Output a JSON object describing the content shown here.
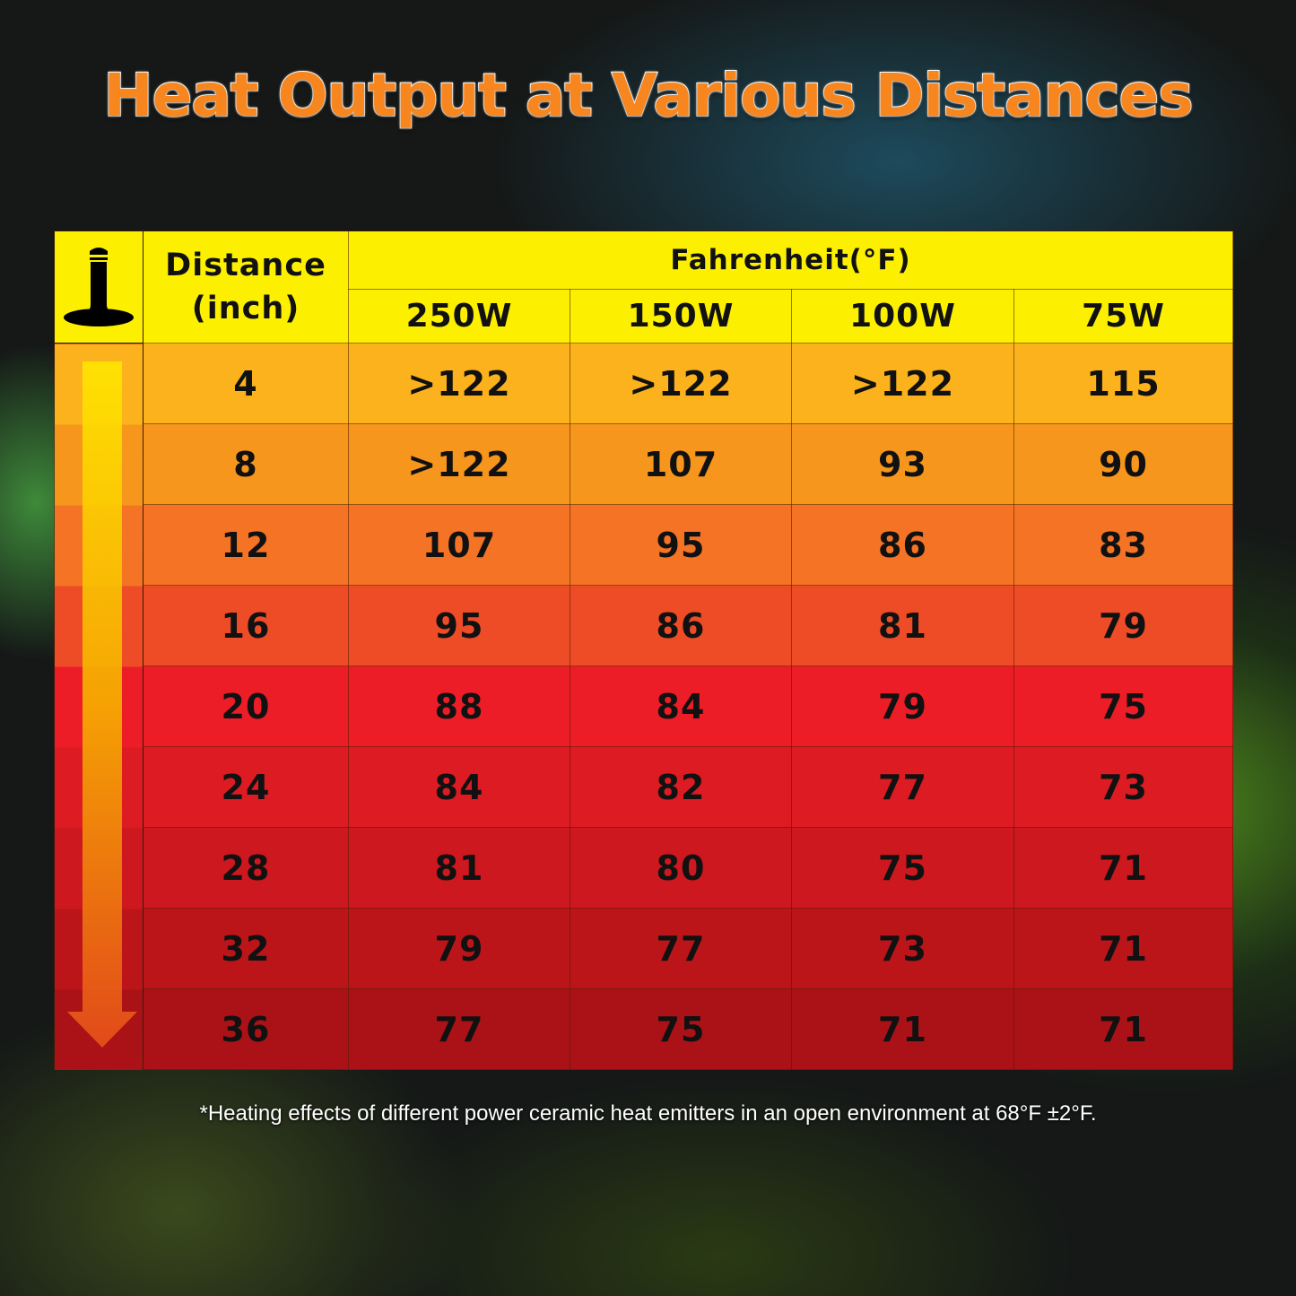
{
  "title": "Heat Output at Various Distances",
  "chart_data": {
    "type": "table",
    "title": "Heat Output at Various Distances",
    "header": {
      "distance": "Distance",
      "distance_unit": "(inch)",
      "group": "Fahrenheit(°F)"
    },
    "columns": [
      "250W",
      "150W",
      "100W",
      "75W"
    ],
    "rows": [
      {
        "distance": "4",
        "values": [
          ">122",
          ">122",
          ">122",
          "115"
        ]
      },
      {
        "distance": "8",
        "values": [
          ">122",
          "107",
          "93",
          "90"
        ]
      },
      {
        "distance": "12",
        "values": [
          "107",
          "95",
          "86",
          "83"
        ]
      },
      {
        "distance": "16",
        "values": [
          "95",
          "86",
          "81",
          "79"
        ]
      },
      {
        "distance": "20",
        "values": [
          "88",
          "84",
          "79",
          "75"
        ]
      },
      {
        "distance": "24",
        "values": [
          "84",
          "82",
          "77",
          "73"
        ]
      },
      {
        "distance": "28",
        "values": [
          "81",
          "80",
          "75",
          "71"
        ]
      },
      {
        "distance": "32",
        "values": [
          "79",
          "77",
          "73",
          "71"
        ]
      },
      {
        "distance": "36",
        "values": [
          "77",
          "75",
          "71",
          "71"
        ]
      }
    ],
    "row_colors": [
      "#fbb21c",
      "#f7961d",
      "#f47324",
      "#ee4c26",
      "#ec1d27",
      "#dc1b22",
      "#cc181e",
      "#bb151a",
      "#aa1217"
    ],
    "header_color": "#fcf000"
  },
  "icons": {
    "emitter": "heat-emitter-icon",
    "arrow": "down-arrow-icon"
  },
  "footnote": "*Heating effects of different power ceramic heat emitters in an open environment at 68°F ±2°F."
}
